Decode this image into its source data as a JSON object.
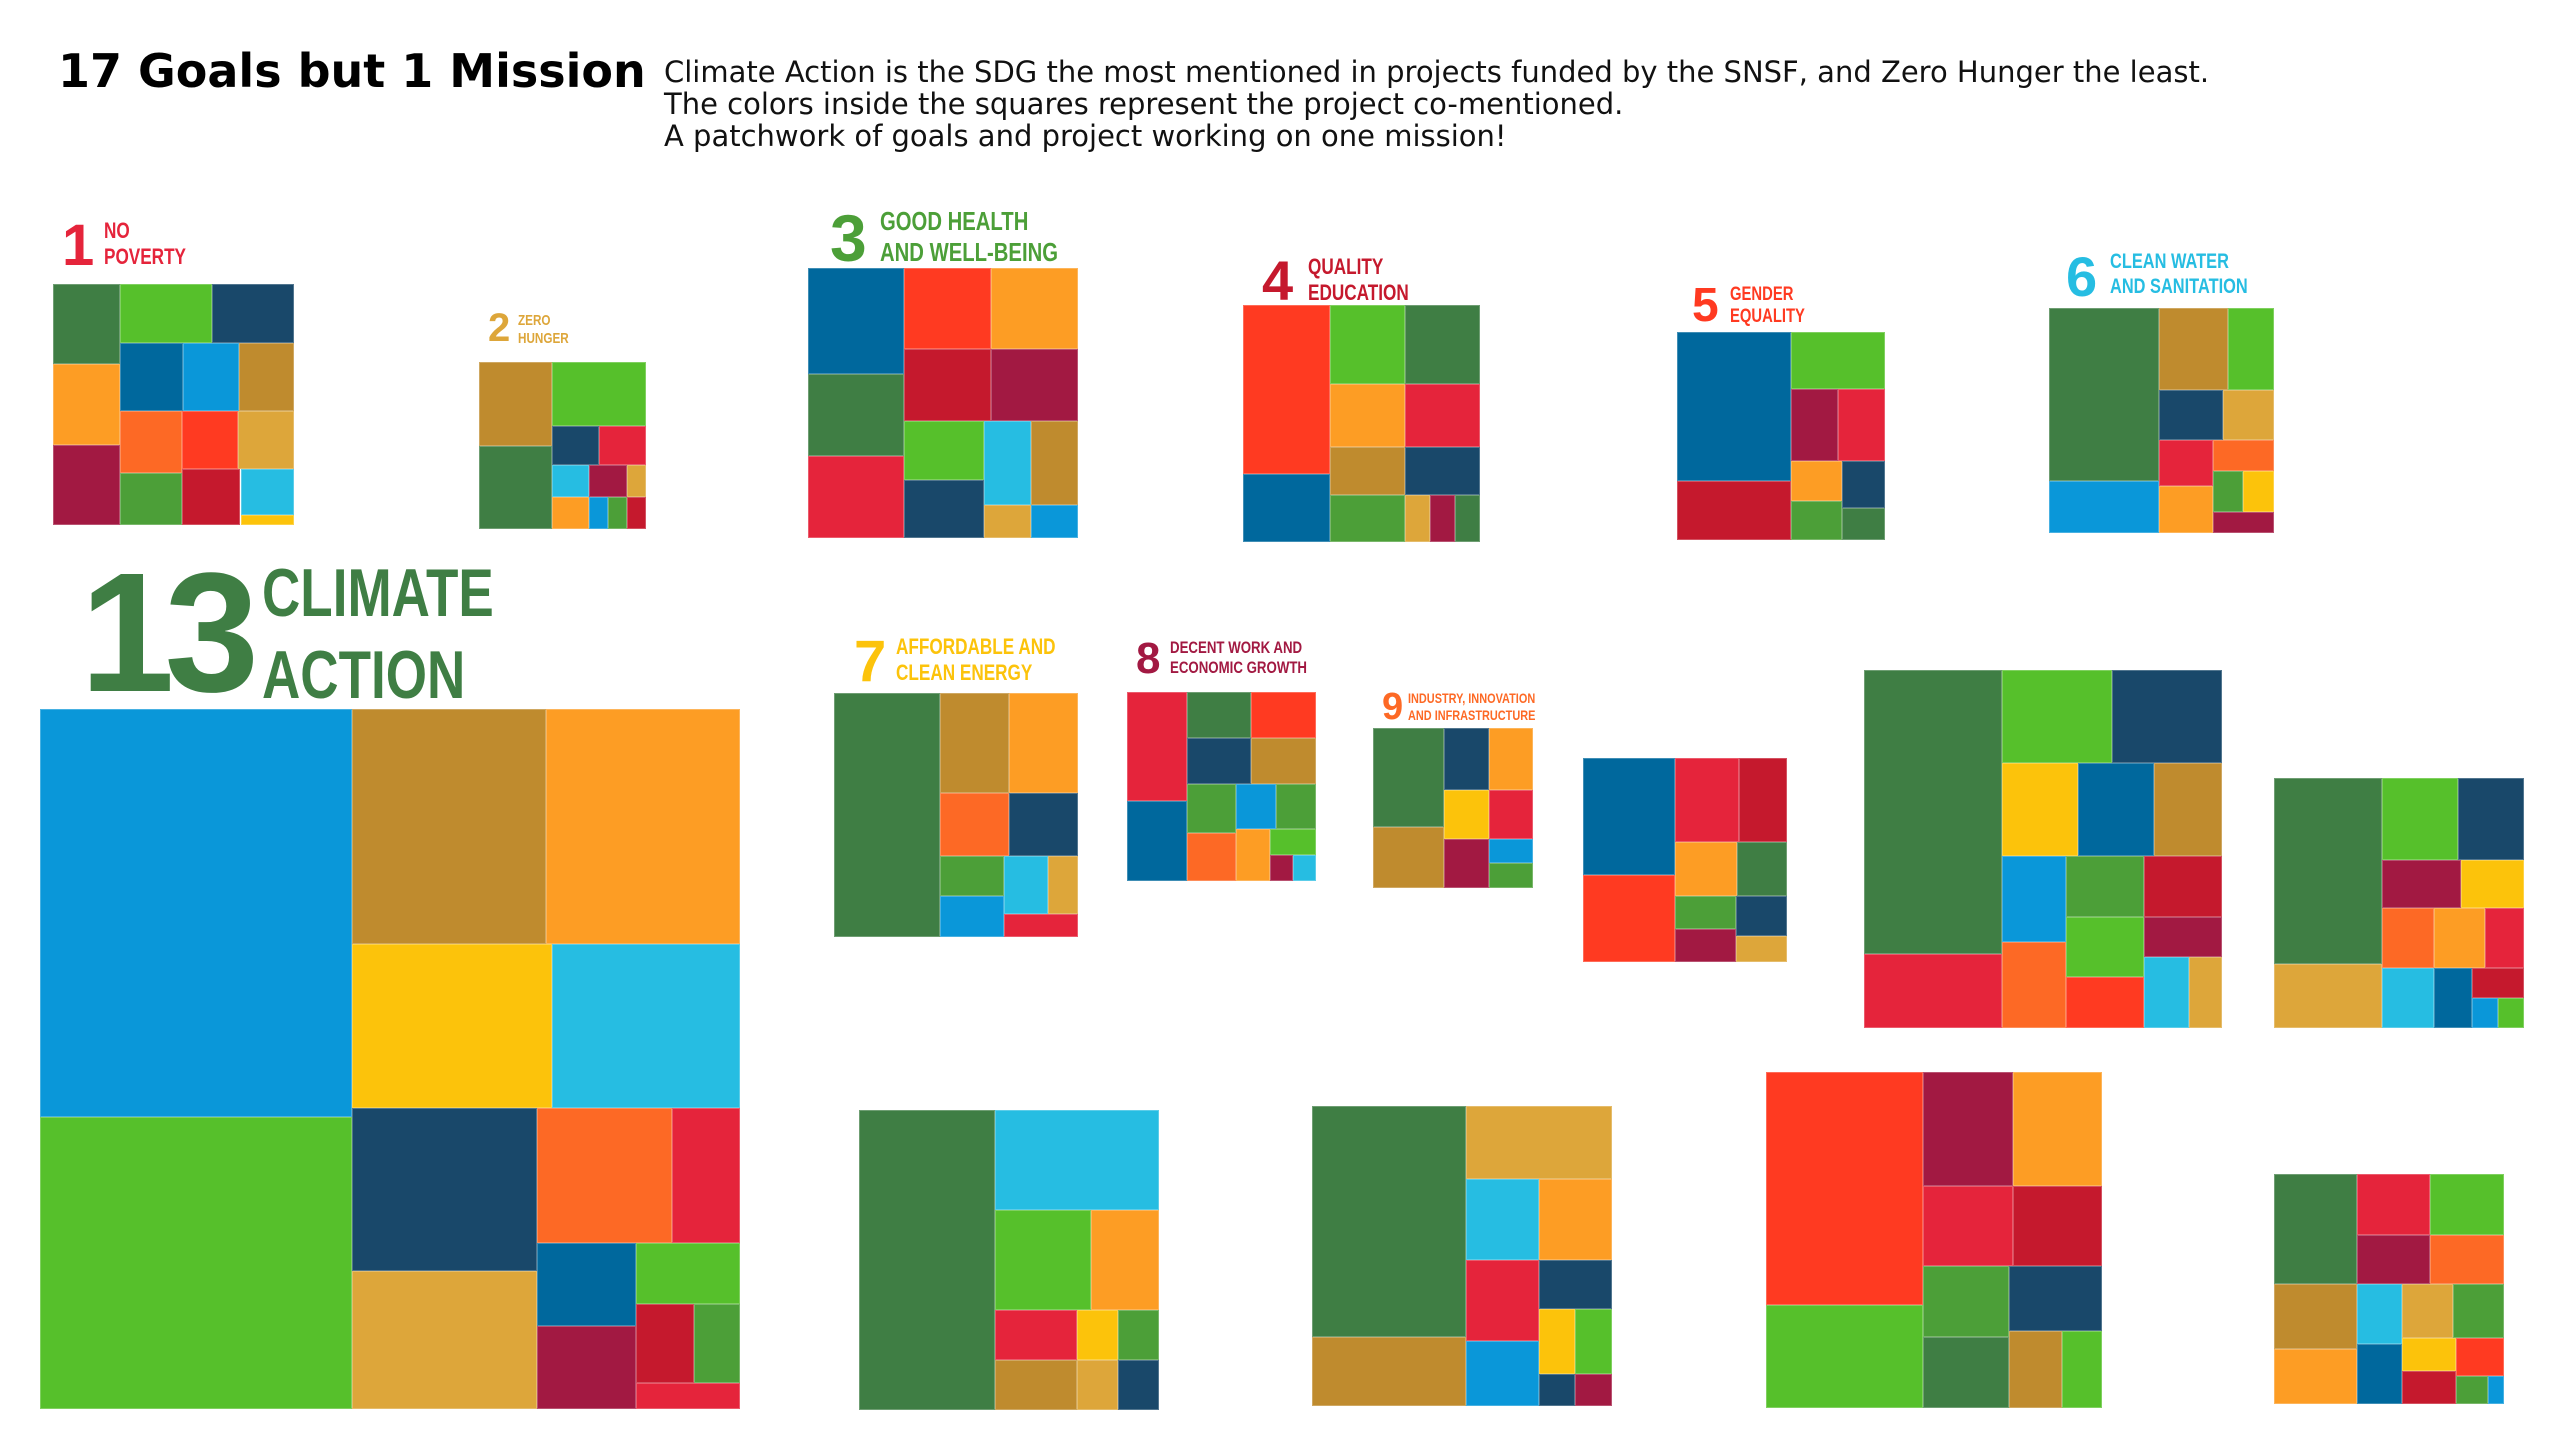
{
  "header": {
    "title": "17 Goals but 1 Mission",
    "lines": [
      "Climate Action is the SDG the most mentioned in projects funded by the SNSF, and Zero Hunger the least.",
      "The colors inside the squares represent the project co-mentioned.",
      "A patchwork of goals and project working on one mission!"
    ]
  },
  "colors": {
    "sdg1": "#e5243b",
    "sdg2": "#dda63a",
    "sdg3": "#4c9f38",
    "sdg4": "#c5192d",
    "sdg5": "#ff3a21",
    "sdg6": "#26bde2",
    "sdg7": "#fcc30b",
    "sdg8": "#a21942",
    "sdg9": "#fd6925",
    "sdg10": "#dd1367",
    "sdg11": "#fd9d24",
    "sdg12": "#bf8b2e",
    "sdg13": "#3f7e44",
    "sdg14": "#0a97d9",
    "sdg15": "#56c02b",
    "sdg16": "#00689d",
    "sdg17": "#19486a"
  },
  "labels": [
    {
      "num": "1",
      "lines": [
        "NO",
        "POVERTY"
      ],
      "color": "#e5243b"
    },
    {
      "num": "2",
      "lines": [
        "ZERO",
        "HUNGER"
      ],
      "color": "#dda63a"
    },
    {
      "num": "3",
      "lines": [
        "GOOD HEALTH",
        "AND WELL-BEING"
      ],
      "color": "#4c9f38"
    },
    {
      "num": "4",
      "lines": [
        "QUALITY",
        "EDUCATION"
      ],
      "color": "#c5192d"
    },
    {
      "num": "5",
      "lines": [
        "GENDER",
        "EQUALITY"
      ],
      "color": "#ff3a21"
    },
    {
      "num": "6",
      "lines": [
        "CLEAN WATER",
        "AND SANITATION"
      ],
      "color": "#26bde2"
    },
    {
      "num": "13",
      "lines": [
        "CLIMATE",
        "ACTION"
      ],
      "color": "#3f7e44"
    },
    {
      "num": "7",
      "lines": [
        "AFFORDABLE AND",
        "CLEAN ENERGY"
      ],
      "color": "#fcc30b"
    },
    {
      "num": "8",
      "lines": [
        "DECENT WORK AND",
        "ECONOMIC GROWTH"
      ],
      "color": "#a21942"
    },
    {
      "num": "9",
      "lines": [
        "INDUSTRY, INNOVATION",
        "AND INFRASTRUCTURE"
      ],
      "color": "#fd6925"
    }
  ],
  "chart_data": {
    "type": "treemap",
    "description_unit": "relative project mentions",
    "treemaps": [
      {
        "sdg": 1,
        "cells": [
          {
            "c": "#3f7e44",
            "v": 1
          },
          {
            "c": "#4c9f38",
            "v": 0.6
          },
          {
            "c": "#0a97d9",
            "v": 0.7
          },
          {
            "c": "#26bde2",
            "v": 0.45
          },
          {
            "c": "#fcc30b",
            "v": 0.1
          },
          {
            "c": "#fd9d24",
            "v": 1
          },
          {
            "c": "#ff3a21",
            "v": 0.6
          },
          {
            "c": "#bf8b2e",
            "v": 0.7
          },
          {
            "c": "#dda63a",
            "v": 0.6
          },
          {
            "c": "#fd6925",
            "v": 0.7
          },
          {
            "c": "#c5192d",
            "v": 0.6
          },
          {
            "c": "#a21942",
            "v": 1
          },
          {
            "c": "#56c02b",
            "v": 1
          },
          {
            "c": "#00689d",
            "v": 0.8
          },
          {
            "c": "#19486a",
            "v": 0.9
          }
        ]
      },
      {
        "sdg": 2,
        "cells": [
          {
            "c": "#bf8b2e",
            "v": 1
          },
          {
            "c": "#26bde2",
            "v": 0.2
          },
          {
            "c": "#fd9d24",
            "v": 0.2
          },
          {
            "c": "#dda63a",
            "v": 0.1
          },
          {
            "c": "#0a97d9",
            "v": 0.1
          },
          {
            "c": "#a21942",
            "v": 0.2
          },
          {
            "c": "#4c9f38",
            "v": 0.1
          },
          {
            "c": "#c5192d",
            "v": 0.1
          },
          {
            "c": "#19486a",
            "v": 0.3
          },
          {
            "c": "#e5243b",
            "v": 0.3
          },
          {
            "c": "#3f7e44",
            "v": 1
          },
          {
            "c": "#56c02b",
            "v": 1
          }
        ]
      },
      {
        "sdg": 3,
        "cells": [
          {
            "c": "#3f7e44",
            "v": 1
          },
          {
            "c": "#e5243b",
            "v": 1
          },
          {
            "c": "#00689d",
            "v": 1.3
          },
          {
            "c": "#56c02b",
            "v": 0.6
          },
          {
            "c": "#19486a",
            "v": 0.6
          },
          {
            "c": "#dda63a",
            "v": 0.2
          },
          {
            "c": "#26bde2",
            "v": 0.5
          },
          {
            "c": "#0a97d9",
            "v": 0.2
          },
          {
            "c": "#bf8b2e",
            "v": 0.5
          },
          {
            "c": "#c5192d",
            "v": 0.8
          },
          {
            "c": "#a21942",
            "v": 0.8
          },
          {
            "c": "#ff3a21",
            "v": 0.9
          },
          {
            "c": "#fd9d24",
            "v": 0.9
          }
        ]
      },
      {
        "sdg": 4,
        "cells": [
          {
            "c": "#00689d",
            "v": 1
          },
          {
            "c": "#ff3a21",
            "v": 2.5
          },
          {
            "c": "#bf8b2e",
            "v": 0.6
          },
          {
            "c": "#4c9f38",
            "v": 0.6
          },
          {
            "c": "#fd9d24",
            "v": 0.8
          },
          {
            "c": "#56c02b",
            "v": 1
          },
          {
            "c": "#dda63a",
            "v": 0.2
          },
          {
            "c": "#a21942",
            "v": 0.2
          },
          {
            "c": "#3f7e44",
            "v": 0.2
          },
          {
            "c": "#19486a",
            "v": 0.6
          },
          {
            "c": "#e5243b",
            "v": 0.8
          },
          {
            "c": "#3f7e44",
            "v": 1
          }
        ]
      },
      {
        "sdg": 5,
        "cells": [
          {
            "c": "#c5192d",
            "v": 1
          },
          {
            "c": "#00689d",
            "v": 2.5
          },
          {
            "c": "#fd9d24",
            "v": 0.3
          },
          {
            "c": "#4c9f38",
            "v": 0.3
          },
          {
            "c": "#3f7e44",
            "v": 0.2
          },
          {
            "c": "#19486a",
            "v": 0.3
          },
          {
            "c": "#a21942",
            "v": 0.5
          },
          {
            "c": "#e5243b",
            "v": 0.5
          },
          {
            "c": "#56c02b",
            "v": 0.8
          }
        ]
      },
      {
        "sdg": 6,
        "cells": [
          {
            "c": "#3f7e44",
            "v": 3
          },
          {
            "c": "#dda63a",
            "v": 0.4
          },
          {
            "c": "#4c9f38",
            "v": 0.2
          },
          {
            "c": "#fcc30b",
            "v": 0.2
          },
          {
            "c": "#a21942",
            "v": 0.2
          },
          {
            "c": "#e5243b",
            "v": 0.4
          },
          {
            "c": "#fd9d24",
            "v": 0.4
          },
          {
            "c": "#fd6925",
            "v": 0.3
          },
          {
            "c": "#56c02b",
            "v": 0.6
          },
          {
            "c": "#19486a",
            "v": 0.5
          },
          {
            "c": "#0a97d9",
            "v": 0.9
          },
          {
            "c": "#bf8b2e",
            "v": 0.9
          }
        ]
      },
      {
        "sdg": 13,
        "cells": [
          {
            "c": "#56c02b",
            "v": 10
          },
          {
            "c": "#0a97d9",
            "v": 14
          },
          {
            "c": "#dda63a",
            "v": 2.8
          },
          {
            "c": "#19486a",
            "v": 3.3
          },
          {
            "c": "#bf8b2e",
            "v": 5
          },
          {
            "c": "#fd9d24",
            "v": 5
          },
          {
            "c": "#00689d",
            "v": 0.9
          },
          {
            "c": "#56c02b",
            "v": 0.7
          },
          {
            "c": "#e5243b",
            "v": 0.3
          },
          {
            "c": "#a21942",
            "v": 0.9
          },
          {
            "c": "#c5192d",
            "v": 0.5
          },
          {
            "c": "#4c9f38",
            "v": 0.4
          },
          {
            "c": "#fd6925",
            "v": 2
          },
          {
            "c": "#e5243b",
            "v": 1
          },
          {
            "c": "#fcc30b",
            "v": 3.6
          },
          {
            "c": "#26bde2",
            "v": 3.4
          }
        ]
      },
      {
        "sdg": 7,
        "cells": [
          {
            "c": "#3f7e44",
            "v": 3
          },
          {
            "c": "#4c9f38",
            "v": 0.3
          },
          {
            "c": "#0a97d9",
            "v": 0.3
          },
          {
            "c": "#dda63a",
            "v": 0.2
          },
          {
            "c": "#26bde2",
            "v": 0.3
          },
          {
            "c": "#e5243b",
            "v": 0.2
          },
          {
            "c": "#fd6925",
            "v": 0.5
          },
          {
            "c": "#19486a",
            "v": 0.5
          },
          {
            "c": "#bf8b2e",
            "v": 0.8
          },
          {
            "c": "#fd9d24",
            "v": 0.8
          }
        ]
      },
      {
        "sdg": 8,
        "cells": [
          {
            "c": "#00689d",
            "v": 0.8
          },
          {
            "c": "#e5243b",
            "v": 1.1
          },
          {
            "c": "#4c9f38",
            "v": 0.4
          },
          {
            "c": "#56c02b",
            "v": 0.2
          },
          {
            "c": "#0a97d9",
            "v": 0.3
          },
          {
            "c": "#a21942",
            "v": 0.1
          },
          {
            "c": "#fd6925",
            "v": 0.4
          },
          {
            "c": "#4c9f38",
            "v": 0.3
          },
          {
            "c": "#26bde2",
            "v": 0.1
          },
          {
            "c": "#fd9d24",
            "v": 0.3
          },
          {
            "c": "#3f7e44",
            "v": 0.5
          },
          {
            "c": "#ff3a21",
            "v": 0.5
          },
          {
            "c": "#19486a",
            "v": 0.5
          },
          {
            "c": "#bf8b2e",
            "v": 0.5
          }
        ]
      },
      {
        "sdg": 9,
        "cells": [
          {
            "c": "#bf8b2e",
            "v": 0.8
          },
          {
            "c": "#3f7e44",
            "v": 1.3
          },
          {
            "c": "#fcc30b",
            "v": 0.4
          },
          {
            "c": "#0a97d9",
            "v": 0.2
          },
          {
            "c": "#4c9f38",
            "v": 0.2
          },
          {
            "c": "#e5243b",
            "v": 0.4
          },
          {
            "c": "#a21942",
            "v": 0.4
          },
          {
            "c": "#19486a",
            "v": 0.5
          },
          {
            "c": "#fd9d24",
            "v": 0.5
          }
        ]
      },
      {
        "sdg": 10,
        "cells": [
          {
            "c": "#ff3a21",
            "v": 1.2
          },
          {
            "c": "#00689d",
            "v": 1.6
          },
          {
            "c": "#4c9f38",
            "v": 0.3
          },
          {
            "c": "#dda63a",
            "v": 0.2
          },
          {
            "c": "#3f7e44",
            "v": 0.4
          },
          {
            "c": "#a21942",
            "v": 0.3
          },
          {
            "c": "#19486a",
            "v": 0.3
          },
          {
            "c": "#c5192d",
            "v": 0.6
          },
          {
            "c": "#fd9d24",
            "v": 0.5
          },
          {
            "c": "#e5243b",
            "v": 0.8
          }
        ]
      },
      {
        "sdg": 11,
        "cells": [
          {
            "c": "#e5243b",
            "v": 1.3
          },
          {
            "c": "#3f7e44",
            "v": 5
          },
          {
            "c": "#0a97d9",
            "v": 0.7
          },
          {
            "c": "#ff3a21",
            "v": 0.5
          },
          {
            "c": "#dda63a",
            "v": 0.3
          },
          {
            "c": "#a21942",
            "v": 0.4
          },
          {
            "c": "#fd6925",
            "v": 0.7
          },
          {
            "c": "#4c9f38",
            "v": 0.6
          },
          {
            "c": "#26bde2",
            "v": 0.4
          },
          {
            "c": "#fcc30b",
            "v": 0.9
          },
          {
            "c": "#c5192d",
            "v": 0.6
          },
          {
            "c": "#56c02b",
            "v": 0.6
          },
          {
            "c": "#00689d",
            "v": 0.9
          },
          {
            "c": "#bf8b2e",
            "v": 0.8
          },
          {
            "c": "#56c02b",
            "v": 1.3
          },
          {
            "c": "#19486a",
            "v": 1.3
          }
        ]
      },
      {
        "sdg": 12,
        "cells": [
          {
            "c": "#56c02b",
            "v": 0.8
          },
          {
            "c": "#3f7e44",
            "v": 2.6
          },
          {
            "c": "#a21942",
            "v": 0.5
          },
          {
            "c": "#c5192d",
            "v": 0.2
          },
          {
            "c": "#0a97d9",
            "v": 0.1
          },
          {
            "c": "#56c02b",
            "v": 0.1
          },
          {
            "c": "#fcc30b",
            "v": 0.4
          },
          {
            "c": "#e5243b",
            "v": 0.3
          },
          {
            "c": "#00689d",
            "v": 0.3
          },
          {
            "c": "#fd6925",
            "v": 0.4
          },
          {
            "c": "#26bde2",
            "v": 0.4
          },
          {
            "c": "#fd9d24",
            "v": 0.4
          },
          {
            "c": "#dda63a",
            "v": 0.9
          },
          {
            "c": "#19486a",
            "v": 0.7
          }
        ]
      },
      {
        "sdg": 14,
        "cells": [
          {
            "c": "#3f7e44",
            "v": 3
          },
          {
            "c": "#fcc30b",
            "v": 0.15
          },
          {
            "c": "#4c9f38",
            "v": 0.15
          },
          {
            "c": "#dda63a",
            "v": 0.15
          },
          {
            "c": "#19486a",
            "v": 0.15
          },
          {
            "c": "#e5243b",
            "v": 0.3
          },
          {
            "c": "#bf8b2e",
            "v": 0.3
          },
          {
            "c": "#fd9d24",
            "v": 0.5
          },
          {
            "c": "#56c02b",
            "v": 0.7
          },
          {
            "c": "#26bde2",
            "v": 1.2
          }
        ]
      },
      {
        "sdg": 15,
        "cells": [
          {
            "c": "#3f7e44",
            "v": 3
          },
          {
            "c": "#0a97d9",
            "v": 0.4
          },
          {
            "c": "#fcc30b",
            "v": 0.2
          },
          {
            "c": "#19486a",
            "v": 0.1
          },
          {
            "c": "#a21942",
            "v": 0.1
          },
          {
            "c": "#19486a",
            "v": 0.3
          },
          {
            "c": "#26bde2",
            "v": 0.5
          },
          {
            "c": "#56c02b",
            "v": 0.2
          },
          {
            "c": "#fd9d24",
            "v": 0.5
          },
          {
            "c": "#e5243b",
            "v": 0.5
          },
          {
            "c": "#bf8b2e",
            "v": 0.9
          },
          {
            "c": "#dda63a",
            "v": 0.9
          }
        ]
      },
      {
        "sdg": 16,
        "cells": [
          {
            "c": "#56c02b",
            "v": 1.6
          },
          {
            "c": "#ff3a21",
            "v": 3.6
          },
          {
            "c": "#4c9f38",
            "v": 0.6
          },
          {
            "c": "#bf8b2e",
            "v": 0.4
          },
          {
            "c": "#56c02b",
            "v": 0.3
          },
          {
            "c": "#3f7e44",
            "v": 0.6
          },
          {
            "c": "#19486a",
            "v": 0.6
          },
          {
            "c": "#e5243b",
            "v": 0.7
          },
          {
            "c": "#c5192d",
            "v": 0.7
          },
          {
            "c": "#a21942",
            "v": 1
          },
          {
            "c": "#fd9d24",
            "v": 1
          }
        ]
      },
      {
        "sdg": 17,
        "cells": [
          {
            "c": "#fd9d24",
            "v": 0.5
          },
          {
            "c": "#bf8b2e",
            "v": 0.6
          },
          {
            "c": "#3f7e44",
            "v": 1
          },
          {
            "c": "#26bde2",
            "v": 0.3
          },
          {
            "c": "#fcc30b",
            "v": 0.2
          },
          {
            "c": "#4c9f38",
            "v": 0.1
          },
          {
            "c": "#0a97d9",
            "v": 0.05
          },
          {
            "c": "#00689d",
            "v": 0.3
          },
          {
            "c": "#c5192d",
            "v": 0.2
          },
          {
            "c": "#ff3a21",
            "v": 0.2
          },
          {
            "c": "#dda63a",
            "v": 0.3
          },
          {
            "c": "#4c9f38",
            "v": 0.3
          },
          {
            "c": "#a21942",
            "v": 0.4
          },
          {
            "c": "#fd6925",
            "v": 0.4
          },
          {
            "c": "#e5243b",
            "v": 0.5
          },
          {
            "c": "#56c02b",
            "v": 0.5
          }
        ]
      }
    ]
  }
}
